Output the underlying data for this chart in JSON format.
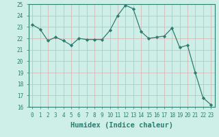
{
  "xlabel": "Humidex (Indice chaleur)",
  "x": [
    0,
    1,
    2,
    3,
    4,
    5,
    6,
    7,
    8,
    9,
    10,
    11,
    12,
    13,
    14,
    15,
    16,
    17,
    18,
    19,
    20,
    21,
    22,
    23
  ],
  "y": [
    23.2,
    22.8,
    21.8,
    22.1,
    21.8,
    21.4,
    22.0,
    21.9,
    21.9,
    21.9,
    22.7,
    24.0,
    24.9,
    24.6,
    22.6,
    22.0,
    22.1,
    22.2,
    22.9,
    21.2,
    21.4,
    19.0,
    16.8,
    16.2
  ],
  "ylim": [
    16,
    25
  ],
  "xlim": [
    -0.5,
    23.5
  ],
  "yticks": [
    16,
    17,
    18,
    19,
    20,
    21,
    22,
    23,
    24,
    25
  ],
  "xticks": [
    0,
    1,
    2,
    3,
    4,
    5,
    6,
    7,
    8,
    9,
    10,
    11,
    12,
    13,
    14,
    15,
    16,
    17,
    18,
    19,
    20,
    21,
    22,
    23
  ],
  "line_color": "#2d7d6e",
  "marker": "D",
  "marker_size": 2.2,
  "bg_color": "#ceeee8",
  "grid_color": "#d8b0b0",
  "axis_color": "#2d7d6e",
  "tick_color": "#2d7d6e",
  "label_color": "#2d7d6e",
  "tick_fontsize": 5.5,
  "xlabel_fontsize": 7.5
}
